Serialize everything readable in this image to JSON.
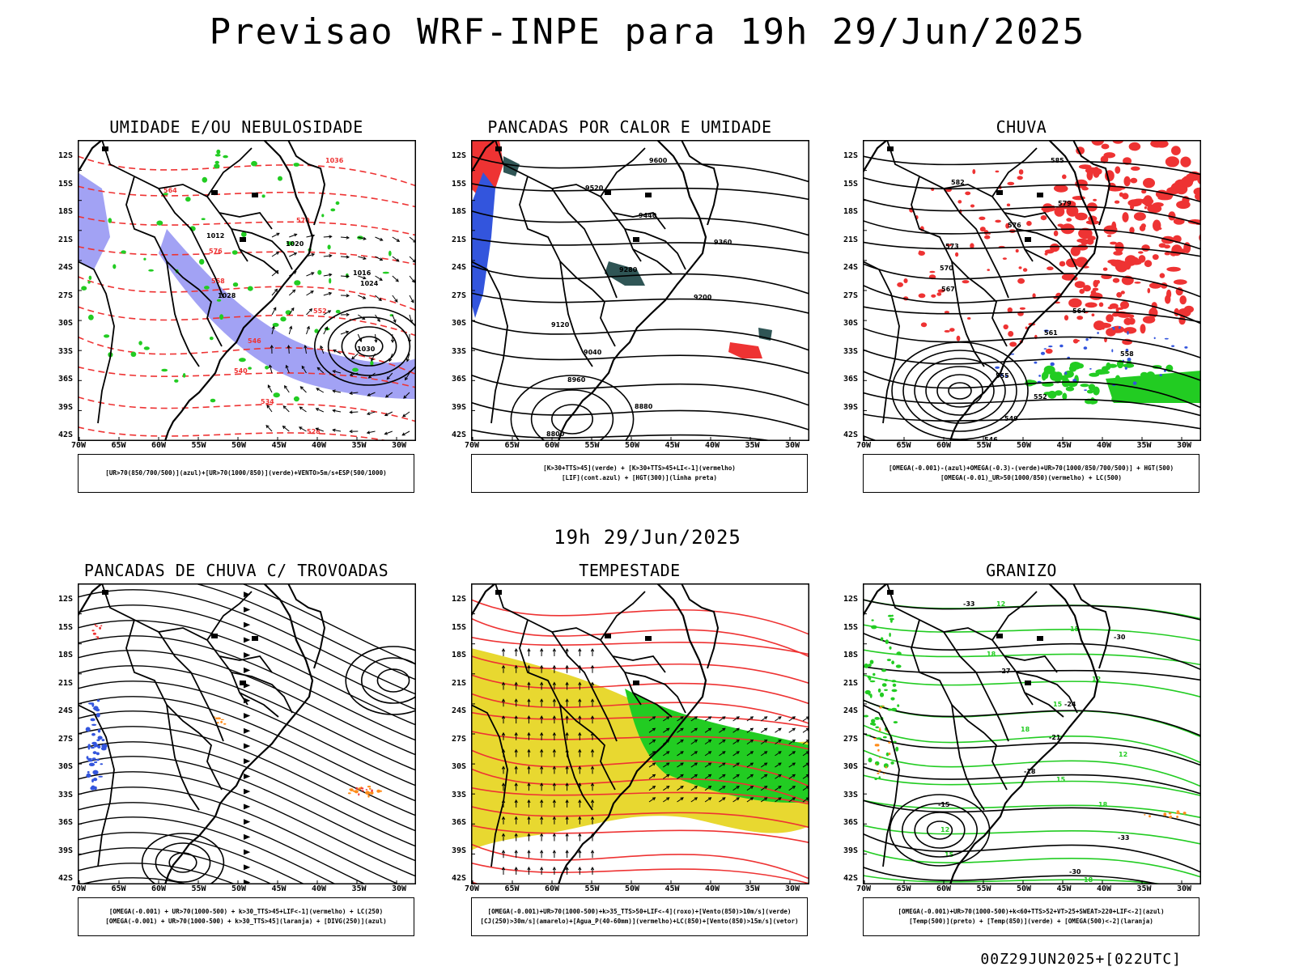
{
  "header": {
    "title": "Previsao WRF-INPE  para 19h 29/Jun/2025"
  },
  "mid_label": "19h 29/Jun/2025",
  "footer": "00Z29JUN2025+[022UTC]",
  "axes": {
    "lat_labels": [
      "12S",
      "15S",
      "18S",
      "21S",
      "24S",
      "27S",
      "30S",
      "33S",
      "36S",
      "39S",
      "42S"
    ],
    "lon_labels": [
      "70W",
      "65W",
      "60W",
      "55W",
      "50W",
      "45W",
      "40W",
      "35W",
      "30W"
    ]
  },
  "panels": [
    {
      "id": "umidade",
      "title": "UMIDADE E/OU NEBULOSIDADE",
      "legend": [
        "[UR>70(850/700/500)](azul)+[UR>70(1000/850)](verde)+VENTO>5m/s+ESP(500/1000)"
      ],
      "contour_labels": [
        "1012",
        "1016",
        "1020",
        "1024",
        "1028",
        "1030",
        "1036",
        "564",
        "570",
        "576",
        "558",
        "552",
        "546",
        "540",
        "534",
        "528",
        "522",
        "516"
      ]
    },
    {
      "id": "pancadas-calor",
      "title": "PANCADAS POR CALOR E UMIDADE",
      "legend": [
        "[K>30+TTS>45](verde) + [K>30+TTS>45+LI<-1](vermelho)",
        "[LIF](cont.azul) + [HGT(300)](linha preta)"
      ],
      "contour_labels": [
        "9600",
        "9520",
        "9440",
        "9360",
        "9280",
        "9200",
        "9120",
        "9040",
        "8960",
        "8880",
        "8800",
        "9680"
      ]
    },
    {
      "id": "chuva",
      "title": "CHUVA",
      "legend": [
        "[OMEGA(-0.001)-(azul)+OMEGA(-0.3)-(verde)+UR>70(1000/850/700/500)] + HGT(500)",
        "[OMEGA(-0.01)_UR>50(1000/850)(vermelho) + LC(500)"
      ],
      "contour_labels": [
        "585",
        "582",
        "579",
        "576",
        "573",
        "570",
        "567",
        "564",
        "561",
        "558",
        "555",
        "552",
        "549",
        "546",
        "543",
        "540"
      ]
    },
    {
      "id": "pancadas-trovoadas",
      "title": "PANCADAS DE CHUVA C/ TROVOADAS",
      "legend": [
        "[OMEGA(-0.001) + UR>70(1000-500) + k>30_TTS>45+LIF<-1](vermelho) + LC(250)",
        "[OMEGA(-0.001) + UR>70(1000-500) + k>30_TTS>45](laranja) + [DIVG(250)](azul)"
      ],
      "contour_labels": []
    },
    {
      "id": "tempestade",
      "title": "TEMPESTADE",
      "legend": [
        "[OMEGA(-0.001)+UR>70(1000-500)+k>35_TTS>50+LIF<-4](roxo)+[Vento(850)>10m/s](verde)",
        "[CJ(250)>30m/s](amarelo)+[Agua_P(40-60mm)](vermelho)+LC(850)+[Vento(850)>15m/s](vetor)"
      ],
      "contour_labels": []
    },
    {
      "id": "granizo",
      "title": "GRANIZO",
      "legend": [
        "[OMEGA(-0.001)+UR>70(1000-500)+k<60+TTS>52+VT>25+SWEAT>220+LIF<-2](azul)",
        "[Temp(500)](preto) + [Temp(850)](verde) + [OMEGA(500)<-2](laranja)"
      ],
      "contour_labels": [
        "-33",
        "-30",
        "-27",
        "-24",
        "-21",
        "-18",
        "-15",
        "12",
        "15",
        "18"
      ]
    }
  ],
  "colors": {
    "blue_fill": "#7b7bf0",
    "green": "#22cc22",
    "red": "#ee3333",
    "yellow": "#e8d830",
    "orange": "#ff8c1a",
    "dark_teal": "#2f5555"
  }
}
